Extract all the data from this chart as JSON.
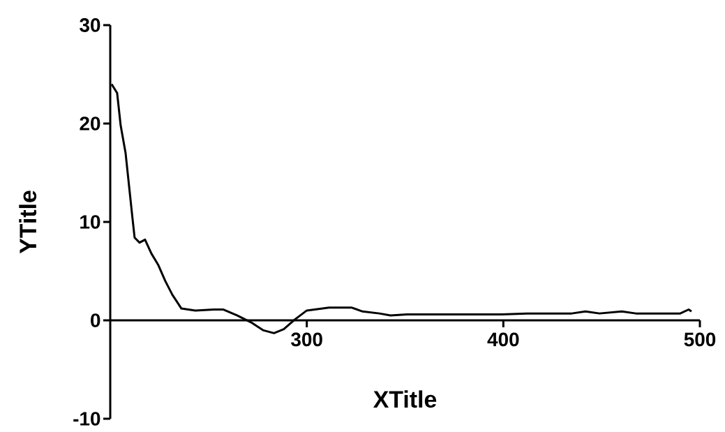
{
  "chart_data": {
    "type": "line",
    "xlabel": "XTitle",
    "ylabel": "YTitle",
    "color": "#000000",
    "x": [
      200.7,
      203.5,
      205.3,
      207.8,
      209.6,
      211.3,
      212.4,
      214.9,
      217.7,
      220.9,
      224.5,
      228,
      231.6,
      236.2,
      243.3,
      252.8,
      257.4,
      264.5,
      271.6,
      277.7,
      283.3,
      288.3,
      294,
      300,
      311.3,
      322.7,
      328.4,
      336.9,
      342.6,
      351,
      359.6,
      370.9,
      385.1,
      399.3,
      412,
      434.8,
      441.8,
      448.9,
      460.3,
      467.4,
      490,
      494.3,
      495.7
    ],
    "values": [
      24.0,
      23.1,
      19.8,
      17.0,
      13.6,
      10.4,
      8.4,
      7.9,
      8.2,
      6.8,
      5.6,
      4.0,
      2.6,
      1.2,
      1.0,
      1.1,
      1.1,
      0.5,
      -0.2,
      -1.0,
      -1.3,
      -0.9,
      0.1,
      1.0,
      1.3,
      1.3,
      0.9,
      0.7,
      0.5,
      0.6,
      0.6,
      0.6,
      0.6,
      0.6,
      0.7,
      0.7,
      0.9,
      0.7,
      0.9,
      0.7,
      0.7,
      1.1,
      0.9
    ],
    "xlim": [
      200,
      500
    ],
    "ylim": [
      -10,
      30
    ],
    "xticks": [
      300,
      400,
      500
    ],
    "yticks": [
      -10,
      0,
      10,
      20,
      30
    ]
  }
}
